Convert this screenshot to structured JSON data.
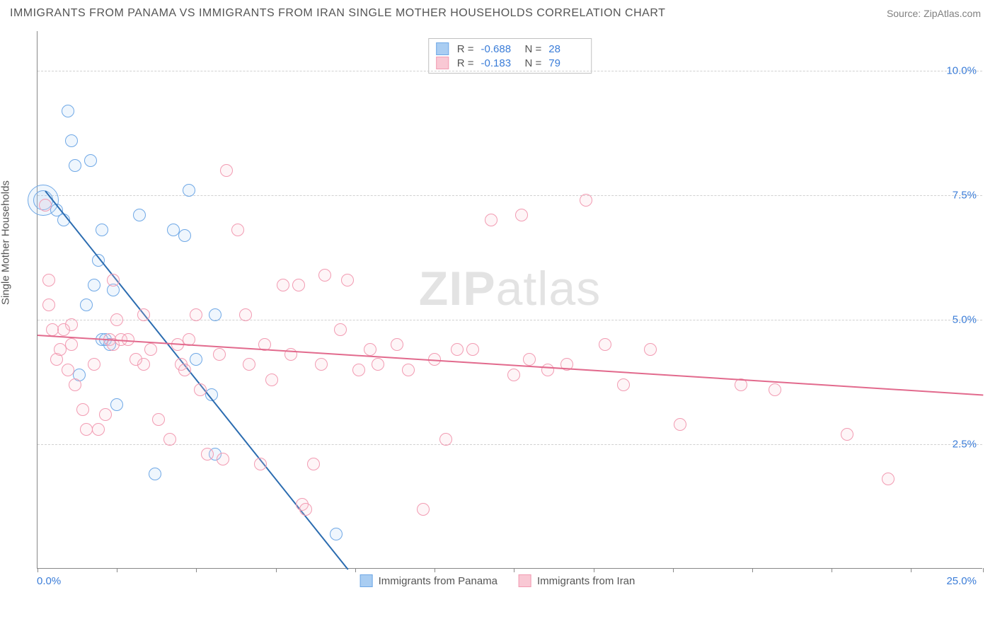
{
  "title": "IMMIGRANTS FROM PANAMA VS IMMIGRANTS FROM IRAN SINGLE MOTHER HOUSEHOLDS CORRELATION CHART",
  "source": "Source: ZipAtlas.com",
  "watermark_a": "ZIP",
  "watermark_b": "atlas",
  "y_axis_label": "Single Mother Households",
  "chart": {
    "type": "scatter",
    "background_color": "#ffffff",
    "grid_color": "#d0d0d0",
    "axis_color": "#888888",
    "xlim": [
      0,
      25
    ],
    "ylim": [
      0,
      10.8
    ],
    "y_ticks": [
      2.5,
      5.0,
      7.5,
      10.0
    ],
    "y_tick_labels": [
      "2.5%",
      "5.0%",
      "7.5%",
      "10.0%"
    ],
    "x_ticks": [
      0,
      2.1,
      4.2,
      6.3,
      8.4,
      10.5,
      12.6,
      14.7,
      16.8,
      18.9,
      21.0,
      23.1,
      25.0
    ],
    "x_left_label": "0.0%",
    "x_right_label": "25.0%",
    "point_radius": 9,
    "point_fill_opacity": 0.18,
    "point_stroke_width": 1.2,
    "label_fontsize": 15,
    "title_fontsize": 16
  },
  "series": [
    {
      "name": "Immigrants from Panama",
      "color_stroke": "#6fa8e6",
      "color_fill": "#a9cdf2",
      "r_label": "R =",
      "r_value": "-0.688",
      "n_label": "N =",
      "n_value": "28",
      "trend": {
        "x1": 0.2,
        "y1": 7.6,
        "x2": 8.2,
        "y2": 0.0,
        "color": "#2b6cb0",
        "width": 2
      },
      "points": [
        {
          "x": 0.15,
          "y": 7.4,
          "r": 22
        },
        {
          "x": 0.15,
          "y": 7.4,
          "r": 14
        },
        {
          "x": 0.8,
          "y": 9.2
        },
        {
          "x": 0.9,
          "y": 8.6
        },
        {
          "x": 1.4,
          "y": 8.2
        },
        {
          "x": 1.0,
          "y": 8.1
        },
        {
          "x": 0.5,
          "y": 7.2
        },
        {
          "x": 2.7,
          "y": 7.1
        },
        {
          "x": 4.0,
          "y": 7.6
        },
        {
          "x": 1.6,
          "y": 6.2
        },
        {
          "x": 1.5,
          "y": 5.7
        },
        {
          "x": 2.0,
          "y": 5.6
        },
        {
          "x": 1.3,
          "y": 5.3
        },
        {
          "x": 3.6,
          "y": 6.8
        },
        {
          "x": 3.9,
          "y": 6.7
        },
        {
          "x": 1.7,
          "y": 4.6
        },
        {
          "x": 1.8,
          "y": 4.6
        },
        {
          "x": 1.9,
          "y": 4.5
        },
        {
          "x": 1.1,
          "y": 3.9
        },
        {
          "x": 4.7,
          "y": 5.1
        },
        {
          "x": 4.2,
          "y": 4.2
        },
        {
          "x": 2.1,
          "y": 3.3
        },
        {
          "x": 4.6,
          "y": 3.5
        },
        {
          "x": 4.7,
          "y": 2.3
        },
        {
          "x": 3.1,
          "y": 1.9
        },
        {
          "x": 7.9,
          "y": 0.7
        },
        {
          "x": 1.7,
          "y": 6.8
        },
        {
          "x": 0.7,
          "y": 7.0
        }
      ]
    },
    {
      "name": "Immigrants from Iran",
      "color_stroke": "#f29bb2",
      "color_fill": "#f9c8d4",
      "r_label": "R =",
      "r_value": "-0.183",
      "n_label": "N =",
      "n_value": "79",
      "trend": {
        "x1": 0.0,
        "y1": 4.7,
        "x2": 25.0,
        "y2": 3.5,
        "color": "#e26a8d",
        "width": 2
      },
      "points": [
        {
          "x": 0.3,
          "y": 5.8
        },
        {
          "x": 0.3,
          "y": 5.3
        },
        {
          "x": 0.9,
          "y": 4.9
        },
        {
          "x": 0.7,
          "y": 4.8
        },
        {
          "x": 0.4,
          "y": 4.8
        },
        {
          "x": 0.9,
          "y": 4.5
        },
        {
          "x": 0.5,
          "y": 4.2
        },
        {
          "x": 0.8,
          "y": 4.0
        },
        {
          "x": 1.0,
          "y": 3.7
        },
        {
          "x": 1.2,
          "y": 3.2
        },
        {
          "x": 1.3,
          "y": 2.8
        },
        {
          "x": 1.6,
          "y": 2.8
        },
        {
          "x": 1.9,
          "y": 4.6
        },
        {
          "x": 2.0,
          "y": 4.5
        },
        {
          "x": 2.2,
          "y": 4.6
        },
        {
          "x": 2.0,
          "y": 5.8
        },
        {
          "x": 2.8,
          "y": 5.1
        },
        {
          "x": 2.8,
          "y": 4.1
        },
        {
          "x": 3.2,
          "y": 3.0
        },
        {
          "x": 3.5,
          "y": 2.6
        },
        {
          "x": 3.7,
          "y": 4.5
        },
        {
          "x": 3.8,
          "y": 4.1
        },
        {
          "x": 3.9,
          "y": 4.0
        },
        {
          "x": 4.0,
          "y": 4.6
        },
        {
          "x": 4.2,
          "y": 5.1
        },
        {
          "x": 4.3,
          "y": 3.6
        },
        {
          "x": 4.5,
          "y": 2.3
        },
        {
          "x": 4.9,
          "y": 2.2
        },
        {
          "x": 5.0,
          "y": 8.0
        },
        {
          "x": 5.3,
          "y": 6.8
        },
        {
          "x": 5.5,
          "y": 5.1
        },
        {
          "x": 5.6,
          "y": 4.1
        },
        {
          "x": 5.9,
          "y": 2.1
        },
        {
          "x": 6.2,
          "y": 3.8
        },
        {
          "x": 6.5,
          "y": 5.7
        },
        {
          "x": 6.7,
          "y": 4.3
        },
        {
          "x": 6.9,
          "y": 5.7
        },
        {
          "x": 7.0,
          "y": 1.3
        },
        {
          "x": 7.1,
          "y": 1.2
        },
        {
          "x": 7.3,
          "y": 2.1
        },
        {
          "x": 7.5,
          "y": 4.1
        },
        {
          "x": 7.6,
          "y": 5.9
        },
        {
          "x": 8.2,
          "y": 5.8
        },
        {
          "x": 8.5,
          "y": 4.0
        },
        {
          "x": 8.8,
          "y": 4.4
        },
        {
          "x": 9.5,
          "y": 4.5
        },
        {
          "x": 9.8,
          "y": 4.0
        },
        {
          "x": 10.2,
          "y": 1.2
        },
        {
          "x": 10.5,
          "y": 4.2
        },
        {
          "x": 10.8,
          "y": 2.6
        },
        {
          "x": 11.1,
          "y": 4.4
        },
        {
          "x": 11.5,
          "y": 4.4
        },
        {
          "x": 12.0,
          "y": 7.0
        },
        {
          "x": 12.6,
          "y": 3.9
        },
        {
          "x": 12.8,
          "y": 7.1
        },
        {
          "x": 13.5,
          "y": 4.0
        },
        {
          "x": 14.0,
          "y": 4.1
        },
        {
          "x": 14.5,
          "y": 7.4
        },
        {
          "x": 15.0,
          "y": 4.5
        },
        {
          "x": 15.5,
          "y": 3.7
        },
        {
          "x": 16.2,
          "y": 4.4
        },
        {
          "x": 17.0,
          "y": 2.9
        },
        {
          "x": 18.6,
          "y": 3.7
        },
        {
          "x": 19.5,
          "y": 3.6
        },
        {
          "x": 21.4,
          "y": 2.7
        },
        {
          "x": 22.5,
          "y": 1.8
        },
        {
          "x": 1.5,
          "y": 4.1
        },
        {
          "x": 2.4,
          "y": 4.6
        },
        {
          "x": 0.6,
          "y": 4.4
        },
        {
          "x": 3.0,
          "y": 4.4
        },
        {
          "x": 4.8,
          "y": 4.3
        },
        {
          "x": 6.0,
          "y": 4.5
        },
        {
          "x": 1.8,
          "y": 3.1
        },
        {
          "x": 2.6,
          "y": 4.2
        },
        {
          "x": 0.2,
          "y": 7.3
        },
        {
          "x": 2.1,
          "y": 5.0
        },
        {
          "x": 9.0,
          "y": 4.1
        },
        {
          "x": 13.0,
          "y": 4.2
        },
        {
          "x": 8.0,
          "y": 4.8
        }
      ]
    }
  ]
}
